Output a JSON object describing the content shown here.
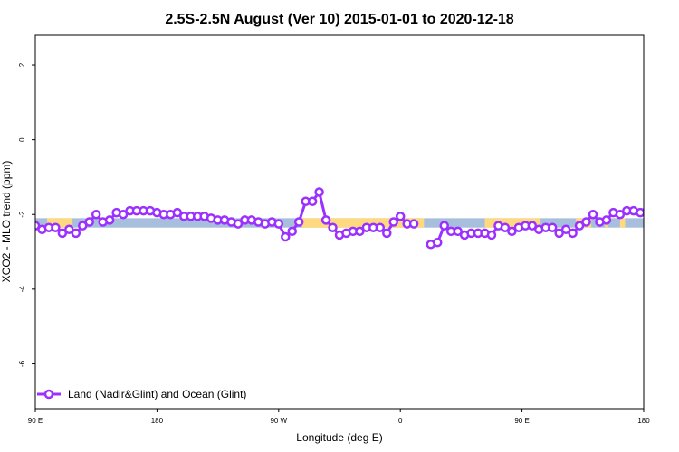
{
  "chart_data": {
    "type": "line",
    "title": "2.5S-2.5N August (Ver 10)   2015-01-01 to 2020-12-18",
    "xlabel": "Longitude (deg E)",
    "ylabel": "XCO2 - MLO trend (ppm)",
    "xlim": [
      90,
      450
    ],
    "ylim": [
      -7.2,
      2.8
    ],
    "x_ticks": [
      {
        "value": 90,
        "label": "90 E"
      },
      {
        "value": 162,
        "label": "180"
      },
      {
        "value": 234,
        "label": "90 W"
      },
      {
        "value": 306,
        "label": "0"
      },
      {
        "value": 378,
        "label": "90 E"
      },
      {
        "value": 450,
        "label": "180"
      }
    ],
    "y_ticks": [
      {
        "value": 2,
        "label": "2"
      },
      {
        "value": 0,
        "label": "0"
      },
      {
        "value": -2,
        "label": "-2"
      },
      {
        "value": -4,
        "label": "-4"
      },
      {
        "value": -6,
        "label": "-6"
      }
    ],
    "grid": false,
    "legend_position": "bottom-left",
    "band": {
      "y_min": -2.35,
      "y_max": -2.1,
      "ocean_color": "#A7BEDC",
      "land_color": "#FFD97F",
      "land_x_ranges": [
        [
          97,
          112
        ],
        [
          248,
          320
        ],
        [
          356,
          389
        ],
        [
          410,
          419
        ],
        [
          427,
          429
        ],
        [
          436,
          439
        ]
      ]
    },
    "series": [
      {
        "name": "Land (Nadir&Glint) and Ocean (Glint)",
        "color": "#9B30FF",
        "segments": [
          {
            "x": [
              90,
              94,
              98,
              102,
              106,
              110,
              114,
              118,
              122,
              126,
              130,
              134,
              138,
              142,
              146,
              150,
              154,
              158,
              162,
              166,
              170,
              174,
              178,
              182,
              186,
              190,
              194,
              198,
              202,
              206,
              210,
              214,
              218,
              222,
              226,
              230,
              234,
              238,
              242,
              246,
              250,
              254,
              258,
              262,
              266,
              270,
              274,
              278,
              282,
              286,
              290,
              294,
              298,
              302,
              306,
              310,
              314
            ],
            "y": [
              -2.3,
              -2.4,
              -2.35,
              -2.35,
              -2.5,
              -2.4,
              -2.5,
              -2.3,
              -2.2,
              -2.0,
              -2.2,
              -2.15,
              -1.95,
              -2.0,
              -1.9,
              -1.9,
              -1.9,
              -1.9,
              -1.95,
              -2.0,
              -2.0,
              -1.95,
              -2.05,
              -2.05,
              -2.05,
              -2.05,
              -2.1,
              -2.15,
              -2.15,
              -2.2,
              -2.25,
              -2.15,
              -2.15,
              -2.2,
              -2.25,
              -2.2,
              -2.25,
              -2.6,
              -2.45,
              -2.2,
              -1.65,
              -1.65,
              -1.4,
              -2.15,
              -2.35,
              -2.55,
              -2.5,
              -2.45,
              -2.45,
              -2.35,
              -2.35,
              -2.35,
              -2.5,
              -2.2,
              -2.05,
              -2.25,
              -2.25
            ]
          },
          {
            "x": [
              324,
              328,
              332,
              336,
              340,
              344,
              348,
              352,
              356,
              360,
              364,
              368,
              372,
              376,
              380,
              384,
              388,
              392,
              396,
              400,
              404,
              408,
              412,
              416,
              420,
              424,
              428,
              432,
              436,
              440,
              444,
              448,
              452
            ],
            "y": [
              -2.8,
              -2.75,
              -2.3,
              -2.45,
              -2.45,
              -2.55,
              -2.5,
              -2.5,
              -2.5,
              -2.55,
              -2.3,
              -2.35,
              -2.45,
              -2.35,
              -2.3,
              -2.3,
              -2.4,
              -2.35,
              -2.35,
              -2.5,
              -2.4,
              -2.5,
              -2.3,
              -2.2,
              -2.0,
              -2.2,
              -2.15,
              -1.95,
              -2.0,
              -1.9,
              -1.9,
              -1.95,
              -1.9
            ]
          }
        ]
      }
    ]
  }
}
